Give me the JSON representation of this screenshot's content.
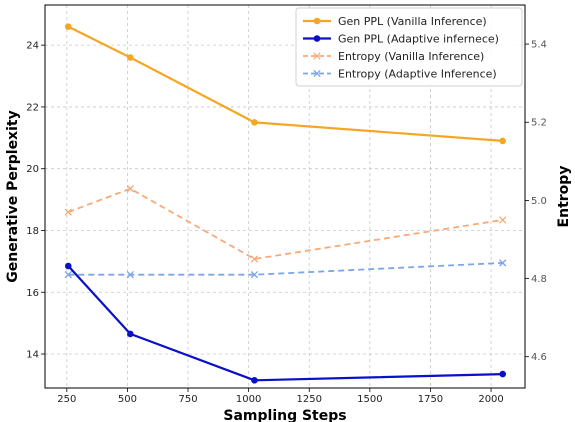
{
  "chart_data": {
    "type": "line",
    "x": [
      256,
      512,
      1024,
      2048
    ],
    "xlabel": "Sampling Steps",
    "xlim": [
      160,
      2140
    ],
    "xticks": [
      250,
      500,
      750,
      1000,
      1250,
      1500,
      1750,
      2000
    ],
    "xtick_labels": [
      "250",
      "500",
      "750",
      "1000",
      "1250",
      "1500",
      "1750",
      "2000"
    ],
    "ylabel_left": "Generative Perplexity",
    "ylim_left": [
      12.9,
      25.3
    ],
    "yticks_left": [
      14,
      16,
      18,
      20,
      22,
      24
    ],
    "ytick_labels_left": [
      "14",
      "16",
      "18",
      "20",
      "22",
      "24"
    ],
    "ylabel_right": "Entropy",
    "ylim_right": [
      4.52,
      5.5
    ],
    "yticks_right": [
      4.6,
      4.8,
      5.0,
      5.2,
      5.4
    ],
    "ytick_labels_right": [
      "4.6",
      "4.8",
      "5.0",
      "5.2",
      "5.4"
    ],
    "grid": true,
    "legend_position": "top-right",
    "series": [
      {
        "name": "Gen PPL (Vanilla Inference)",
        "axis": "left",
        "values": [
          24.6,
          23.6,
          21.5,
          20.9
        ],
        "color": "#f5a623",
        "style": "solid",
        "marker": "circle"
      },
      {
        "name": "Gen PPL (Adaptive infernece)",
        "axis": "left",
        "values": [
          16.85,
          14.65,
          13.15,
          13.35
        ],
        "color": "#0a10c8",
        "style": "solid",
        "marker": "circle"
      },
      {
        "name": "Entropy (Vanilla Inference)",
        "axis": "right",
        "values": [
          4.97,
          5.03,
          4.85,
          4.95
        ],
        "color": "#f8a978",
        "style": "dashed",
        "marker": "x"
      },
      {
        "name": "Entropy (Adaptive Inference)",
        "axis": "right",
        "values": [
          4.81,
          4.81,
          4.81,
          4.84
        ],
        "color": "#7aa6ea",
        "style": "dashed",
        "marker": "x"
      }
    ]
  }
}
